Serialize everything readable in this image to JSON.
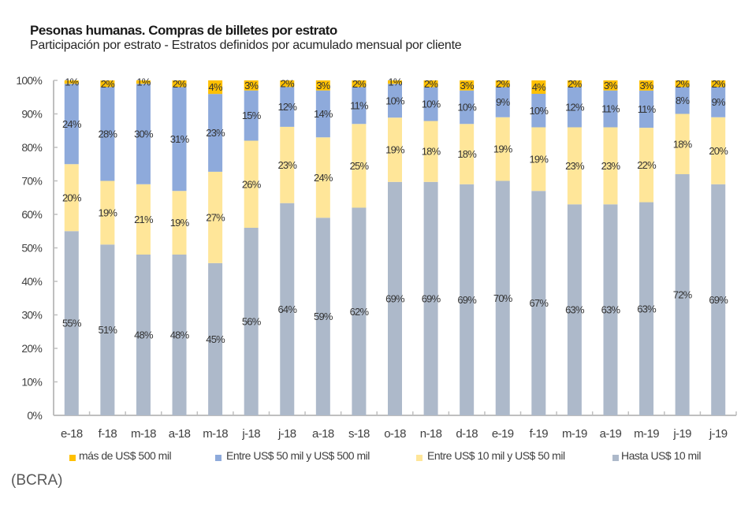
{
  "chart_data": {
    "type": "bar",
    "stacked": true,
    "title": "Pesonas humanas. Compras de billetes por estrato",
    "subtitle": "Participación por estrato - Estratos definidos por acumulado mensual por cliente",
    "xlabel": "",
    "ylabel": "",
    "ylim": [
      0,
      100
    ],
    "yticks": [
      0,
      10,
      20,
      30,
      40,
      50,
      60,
      70,
      80,
      90,
      100
    ],
    "ytick_labels": [
      "0%",
      "10%",
      "20%",
      "30%",
      "40%",
      "50%",
      "60%",
      "70%",
      "80%",
      "90%",
      "100%"
    ],
    "grid": false,
    "legend_position": "bottom",
    "value_suffix": "%",
    "categories": [
      "e-18",
      "f-18",
      "m-18",
      "a-18",
      "m-18",
      "j-18",
      "j-18",
      "a-18",
      "s-18",
      "o-18",
      "n-18",
      "d-18",
      "e-19",
      "f-19",
      "m-19",
      "a-19",
      "m-19",
      "j-19",
      "j-19"
    ],
    "series": [
      {
        "name": "Hasta US$ 10 mil",
        "color": "#ADB9CA",
        "values": [
          55,
          51,
          48,
          48,
          45,
          56,
          64,
          59,
          62,
          69,
          69,
          69,
          70,
          67,
          63,
          63,
          63,
          72,
          69
        ]
      },
      {
        "name": "Entre US$ 10 mil y US$ 50 mil",
        "color": "#FFE699",
        "values": [
          20,
          19,
          21,
          19,
          27,
          26,
          23,
          24,
          25,
          19,
          18,
          18,
          19,
          19,
          23,
          23,
          22,
          18,
          20
        ]
      },
      {
        "name": "Entre US$ 50 mil y US$ 500 mil",
        "color": "#8EAADB",
        "values": [
          24,
          28,
          30,
          31,
          23,
          15,
          12,
          14,
          11,
          10,
          10,
          10,
          9,
          10,
          12,
          11,
          11,
          8,
          9
        ]
      },
      {
        "name": "más de US$ 500 mil",
        "color": "#FFC000",
        "values": [
          1,
          2,
          1,
          2,
          4,
          3,
          2,
          3,
          2,
          1,
          2,
          3,
          2,
          4,
          2,
          3,
          3,
          2,
          2
        ]
      }
    ]
  },
  "source": "(BCRA)"
}
